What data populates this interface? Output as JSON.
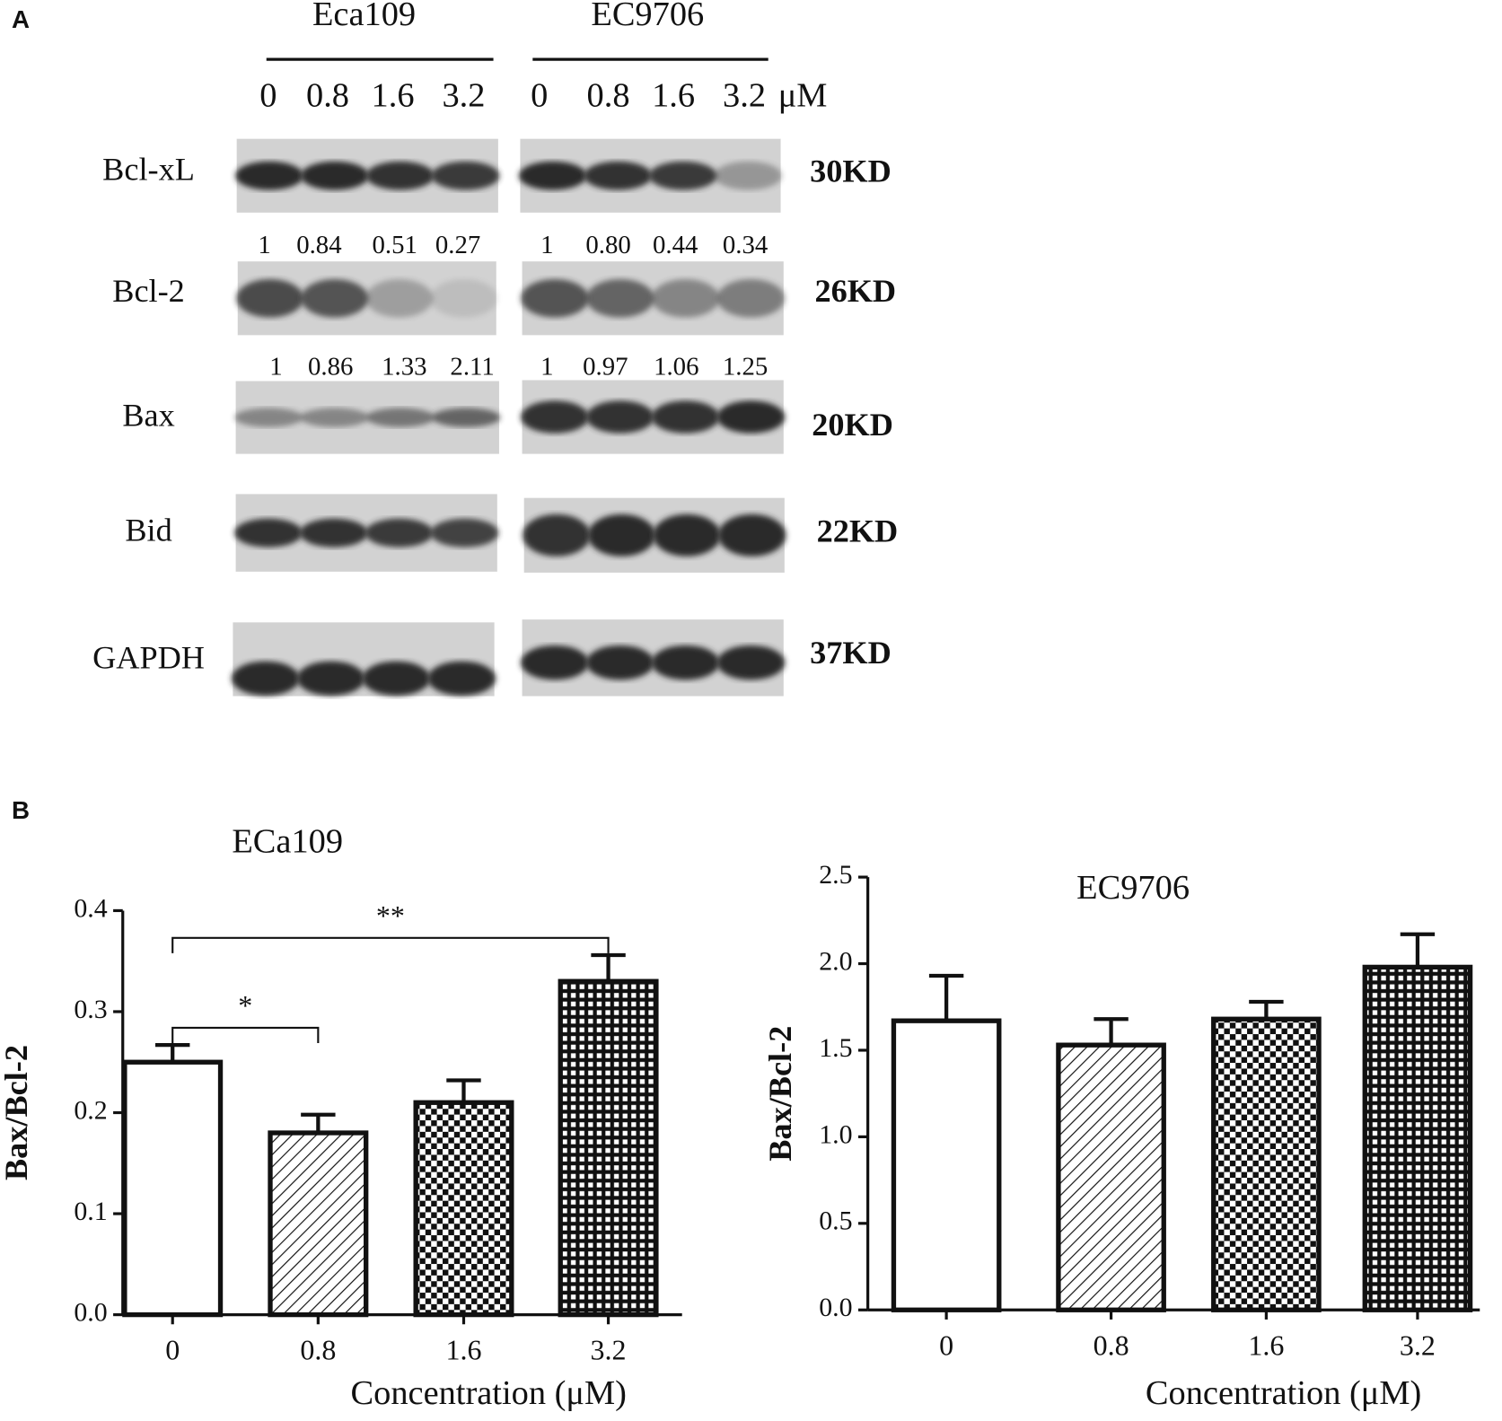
{
  "panel_a": {
    "label": "A",
    "cell_lines": [
      "Eca109",
      "EC9706"
    ],
    "concentrations": [
      [
        "0",
        "0.8",
        "1.6",
        "3.2"
      ],
      [
        "0",
        "0.8",
        "1.6",
        "3.2"
      ]
    ],
    "unit": "μM",
    "proteins": [
      {
        "name": "Bcl-xL",
        "size": "30KD"
      },
      {
        "name": "Bcl-2",
        "size": "26KD",
        "ratios": [
          [
            "1",
            "0.84",
            "0.51",
            "0.27"
          ],
          [
            "1",
            "0.80",
            "0.44",
            "0.34"
          ]
        ]
      },
      {
        "name": "Bax",
        "size": "20KD",
        "ratios": [
          [
            "1",
            "0.86",
            "1.33",
            "2.11"
          ],
          [
            "1",
            "0.97",
            "1.06",
            "1.25"
          ]
        ]
      },
      {
        "name": "Bid",
        "size": "22KD"
      },
      {
        "name": "GAPDH",
        "size": "37KD"
      }
    ]
  },
  "panel_b": {
    "label": "B"
  },
  "chart_data": [
    {
      "type": "bar",
      "title": "ECa109",
      "ylabel": "Bax/Bcl-2",
      "xlabel": "Concentration (μM)",
      "categories": [
        "0",
        "0.8",
        "1.6",
        "3.2"
      ],
      "values": [
        0.25,
        0.18,
        0.21,
        0.33
      ],
      "errors": [
        0.017,
        0.018,
        0.022,
        0.026
      ],
      "patterns": [
        "none",
        "diagonal",
        "checker",
        "grid"
      ],
      "ylim": [
        0,
        0.4
      ],
      "yticks": [
        {
          "value": 0,
          "label": "0.0"
        },
        {
          "value": 0.1,
          "label": "0.1"
        },
        {
          "value": 0.2,
          "label": "0.2"
        },
        {
          "value": 0.3,
          "label": "0.3"
        },
        {
          "value": 0.4,
          "label": "0.4"
        }
      ],
      "annotations": [
        {
          "text": "*",
          "from": 0,
          "to": 1
        },
        {
          "text": "**",
          "from": 0,
          "to": 3
        }
      ]
    },
    {
      "type": "bar",
      "title": "EC9706",
      "ylabel": "Bax/Bcl-2",
      "xlabel": "Concentration (μM)",
      "categories": [
        "0",
        "0.8",
        "1.6",
        "3.2"
      ],
      "values": [
        1.67,
        1.53,
        1.68,
        1.98
      ],
      "errors": [
        0.26,
        0.15,
        0.1,
        0.19
      ],
      "patterns": [
        "none",
        "diagonal",
        "checker",
        "grid"
      ],
      "ylim": [
        0,
        2.5
      ],
      "yticks": [
        {
          "value": 0,
          "label": "0.0"
        },
        {
          "value": 0.5,
          "label": "0.5"
        },
        {
          "value": 1,
          "label": "1.0"
        },
        {
          "value": 1.5,
          "label": "1.5"
        },
        {
          "value": 2,
          "label": "2.0"
        },
        {
          "value": 2.5,
          "label": "2.5"
        }
      ]
    }
  ]
}
